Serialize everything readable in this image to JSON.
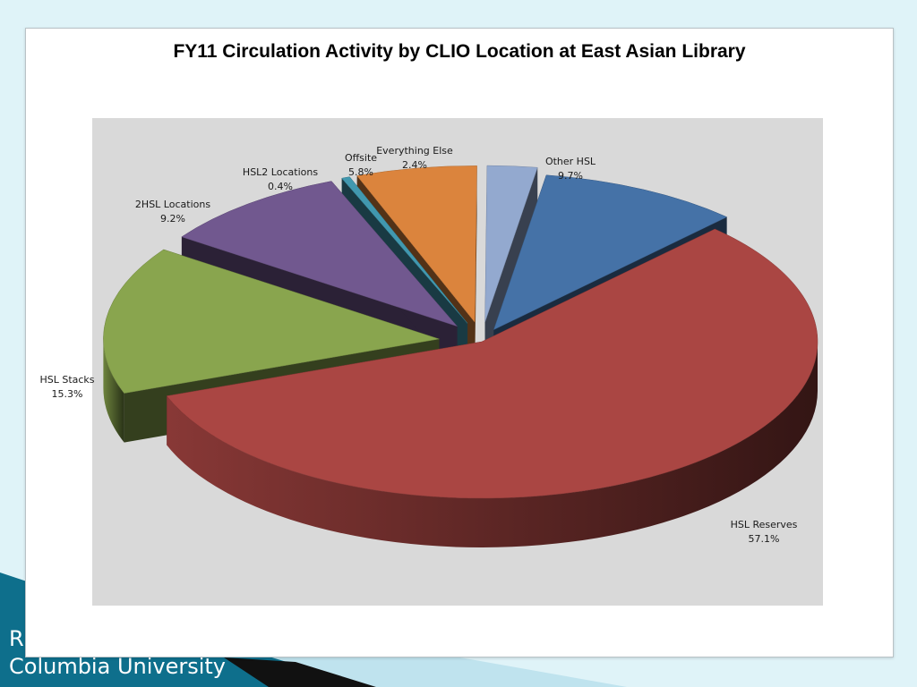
{
  "slide": {
    "footer_line1": "R",
    "footer_line2": "Columbia University",
    "accent_color": "#0e6f8c"
  },
  "chart_data": {
    "type": "pie",
    "title": "FY11 Circulation Activity by CLIO Location at East Asian Library",
    "three_d": true,
    "exploded": true,
    "slices": [
      {
        "label": "Other HSL",
        "percent_label": "9.7%",
        "value": 9.7,
        "color": "#4572a7"
      },
      {
        "label": "HSL Reserves",
        "percent_label": "57.1%",
        "value": 57.1,
        "color": "#aa4643"
      },
      {
        "label": "HSL Stacks",
        "percent_label": "15.3%",
        "value": 15.3,
        "color": "#89a54e"
      },
      {
        "label": "2HSL Locations",
        "percent_label": "9.2%",
        "value": 9.2,
        "color": "#71588f"
      },
      {
        "label": "HSL2 Locations",
        "percent_label": "0.4%",
        "value": 0.4,
        "color": "#4198af"
      },
      {
        "label": "Offsite",
        "percent_label": "5.8%",
        "value": 5.8,
        "color": "#db843d"
      },
      {
        "label": "Everything Else",
        "percent_label": "2.4%",
        "value": 2.4,
        "color": "#93a9cf"
      }
    ]
  }
}
